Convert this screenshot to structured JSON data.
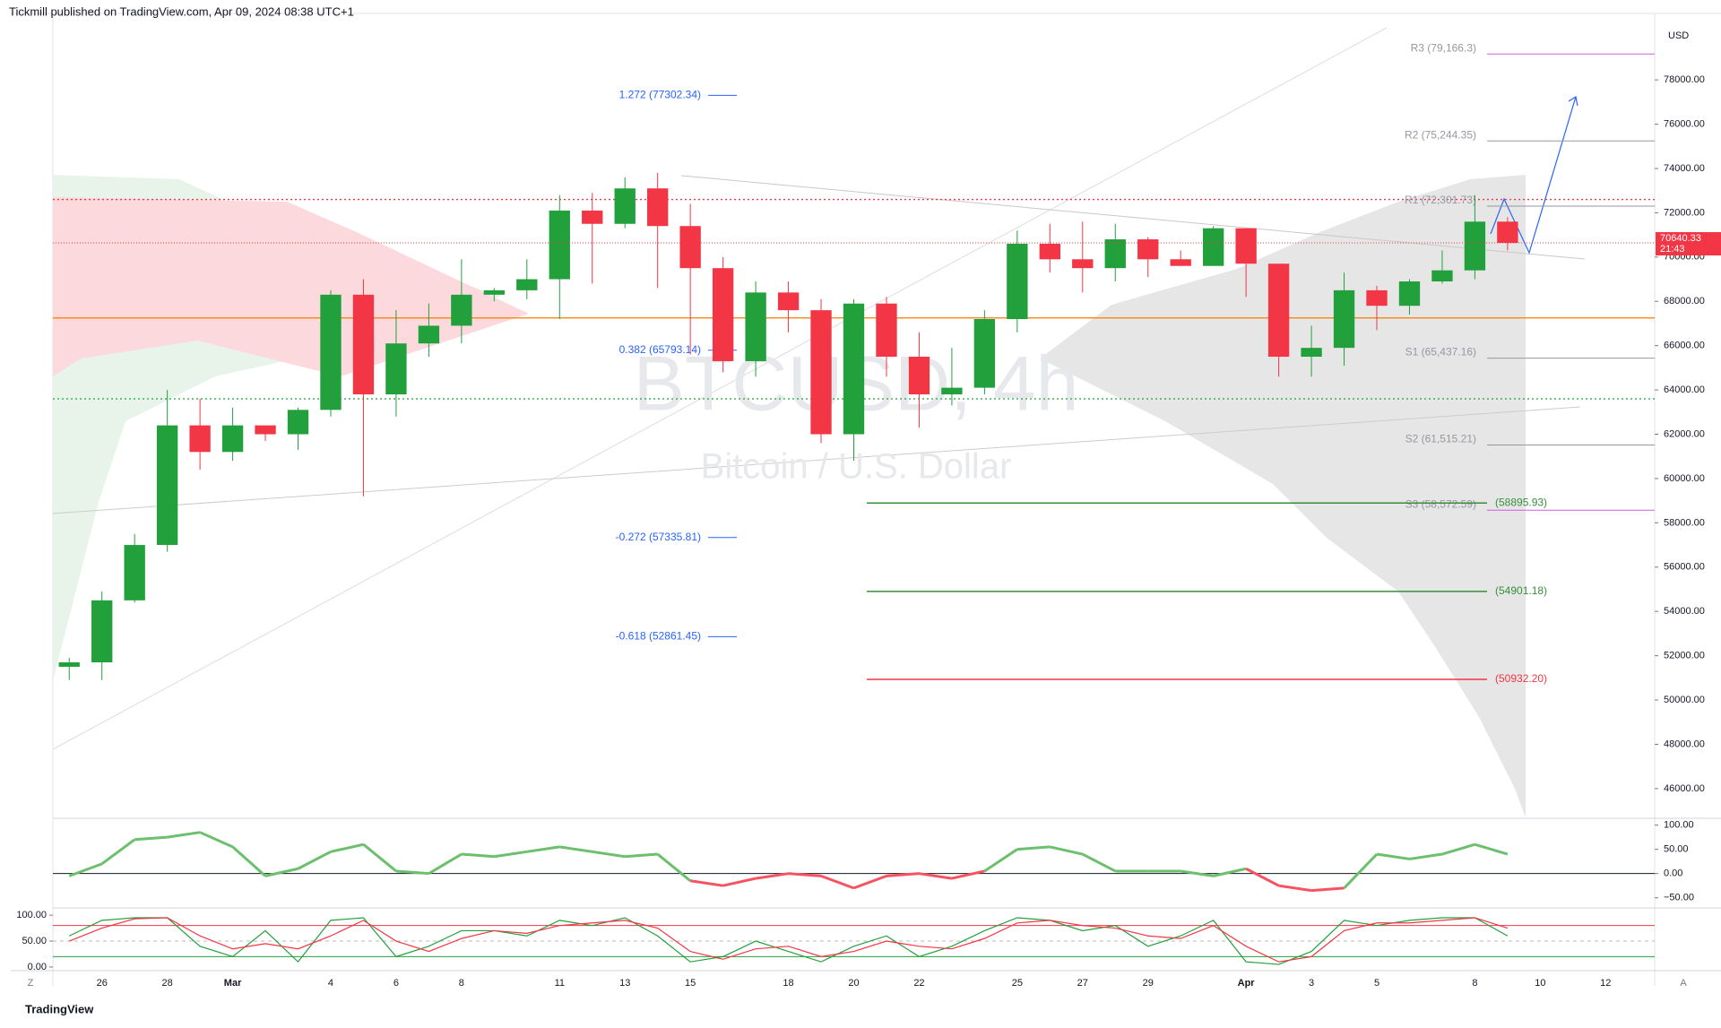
{
  "header": {
    "publisher": "Tickmill published on TradingView.com, Apr 09, 2024 08:38 UTC+1",
    "currency": "USD",
    "brand": "TradingView",
    "left_button": "Z",
    "right_button": "A"
  },
  "chart_data": {
    "type": "candlestick",
    "symbol": "BTCUSD, 4h",
    "description": "Bitcoin / U.S. Dollar",
    "up_color": "#22a03c",
    "down_color": "#f23645",
    "categories": [
      null,
      "26",
      null,
      "28",
      null,
      "Mar",
      null,
      null,
      "4",
      null,
      "6",
      null,
      "8",
      null,
      null,
      "11",
      null,
      "13",
      null,
      "15",
      null,
      null,
      "18",
      null,
      "20",
      null,
      "22",
      null,
      null,
      "25",
      null,
      "27",
      null,
      "29",
      null,
      null,
      "Apr",
      null,
      "3",
      null,
      "5",
      null,
      null,
      "8",
      null,
      "10",
      null,
      "12",
      null
    ],
    "open": [
      51500,
      51700,
      54500,
      57000,
      62400,
      61200,
      62400,
      62000,
      63100,
      68300,
      63800,
      66100,
      66900,
      68300,
      68500,
      69000,
      72100,
      71500,
      73100,
      71400,
      69500,
      65300,
      68400,
      67600,
      62000,
      67900,
      65500,
      63800,
      64100,
      67200,
      70600,
      69900,
      69500,
      70800,
      69900,
      69600,
      71300,
      69700,
      65500,
      65900,
      68500,
      67800,
      68900,
      69400,
      71600,
      null,
      null,
      null,
      null
    ],
    "high": [
      51900,
      54900,
      57500,
      64000,
      63600,
      63200,
      62400,
      63200,
      68500,
      69000,
      67600,
      67900,
      69900,
      68600,
      69900,
      72800,
      72900,
      73600,
      73800,
      72400,
      70000,
      68900,
      68900,
      68100,
      68100,
      68200,
      66600,
      65900,
      67600,
      71200,
      71500,
      71600,
      71500,
      70900,
      70300,
      71400,
      71300,
      69700,
      66900,
      69300,
      68700,
      69000,
      70300,
      72800,
      71800,
      null,
      null,
      null,
      null
    ],
    "low": [
      50900,
      50900,
      54400,
      56700,
      60400,
      60800,
      61700,
      61300,
      62800,
      59200,
      62800,
      65500,
      66100,
      68000,
      68100,
      67200,
      68800,
      71300,
      68600,
      65600,
      64800,
      64600,
      66600,
      61600,
      60800,
      64600,
      62300,
      63300,
      63800,
      66600,
      69300,
      68400,
      68900,
      69100,
      69600,
      69600,
      68200,
      64600,
      64600,
      65100,
      66700,
      67400,
      68800,
      69000,
      70300,
      null,
      null,
      null,
      null
    ],
    "close": [
      51700,
      54500,
      57000,
      62400,
      61200,
      62400,
      62000,
      63100,
      68300,
      63800,
      66100,
      66900,
      68300,
      68500,
      69000,
      72100,
      71500,
      73100,
      71400,
      69500,
      65300,
      68400,
      67600,
      62000,
      67900,
      65500,
      63800,
      64100,
      67200,
      70600,
      69900,
      69500,
      70800,
      69900,
      69600,
      71300,
      69700,
      65500,
      65900,
      68500,
      67800,
      68900,
      69400,
      71600,
      70640.33,
      null,
      null,
      null,
      null
    ],
    "ylim": [
      44700,
      81000
    ],
    "yticks": [
      {
        "value": 46000,
        "label": "46000.00"
      },
      {
        "value": 48000,
        "label": "48000.00"
      },
      {
        "value": 50000,
        "label": "50000.00"
      },
      {
        "value": 52000,
        "label": "52000.00"
      },
      {
        "value": 54000,
        "label": "54000.00"
      },
      {
        "value": 56000,
        "label": "56000.00"
      },
      {
        "value": 58000,
        "label": "58000.00"
      },
      {
        "value": 60000,
        "label": "60000.00"
      },
      {
        "value": 62000,
        "label": "62000.00"
      },
      {
        "value": 64000,
        "label": "64000.00"
      },
      {
        "value": 66000,
        "label": "66000.00"
      },
      {
        "value": 68000,
        "label": "68000.00"
      },
      {
        "value": 70000,
        "label": "70000.00"
      },
      {
        "value": 72000,
        "label": "72000.00"
      },
      {
        "value": 74000,
        "label": "74000.00"
      },
      {
        "value": 76000,
        "label": "76000.00"
      },
      {
        "value": 78000,
        "label": "78000.00"
      }
    ],
    "last_price": 70640.33,
    "countdown": "21:43",
    "levels": [
      {
        "value": 72600,
        "color": "#f23645",
        "dash": "2 3"
      },
      {
        "value": 67250,
        "color": "#f57c00",
        "dash": "none"
      },
      {
        "value": 63600,
        "color": "#22a03c",
        "dash": "2 3"
      }
    ],
    "fib_levels": [
      {
        "value": 77302.34,
        "label": "1.272 (77302.34)"
      },
      {
        "value": 65793.14,
        "label": "0.382 (65793.14)"
      },
      {
        "value": 57335.81,
        "label": "-0.272 (57335.81)"
      },
      {
        "value": 52861.45,
        "label": "-0.618 (52861.45)"
      }
    ],
    "pivots": [
      {
        "value": 79166.3,
        "label": "R3 (79,166.3)"
      },
      {
        "value": 75244.35,
        "label": "R2 (75,244.35)"
      },
      {
        "value": 72301.73,
        "label": "R1 (72,301.73)"
      },
      {
        "value": 65437.16,
        "label": "S1 (65,437.16)"
      },
      {
        "value": 61515.21,
        "label": "S2 (61,515.21)"
      },
      {
        "value": 58572.59,
        "label": "S3 (58,572.59)"
      }
    ],
    "targets": [
      {
        "value": 58895.93,
        "label": "(58895.93)",
        "color": "#388e3c"
      },
      {
        "value": 54901.18,
        "label": "(54901.18)",
        "color": "#388e3c"
      },
      {
        "value": 50932.2,
        "label": "(50932.20)",
        "color": "#f23645"
      }
    ],
    "oscillator": {
      "ylim": [
        -69,
        114
      ],
      "yticks": [
        {
          "value": 100,
          "label": "100.00"
        },
        {
          "value": 50,
          "label": "50.00"
        },
        {
          "value": 0,
          "label": "0.00"
        },
        {
          "value": -50,
          "label": "−50.00"
        }
      ],
      "above_color": "#6cbf6c",
      "below_color": "#f7525f",
      "values": [
        -5,
        20,
        70,
        75,
        85,
        55,
        -5,
        10,
        45,
        60,
        5,
        0,
        40,
        35,
        45,
        55,
        45,
        35,
        40,
        -15,
        -25,
        -10,
        0,
        -5,
        -30,
        -5,
        0,
        -10,
        5,
        50,
        55,
        40,
        5,
        5,
        5,
        -5,
        10,
        -25,
        -35,
        -30,
        40,
        30,
        40,
        60,
        40,
        null,
        null,
        null,
        null
      ]
    },
    "stochastic": {
      "ylim": [
        -7,
        114
      ],
      "yticks": [
        {
          "value": 100,
          "label": "100.00"
        },
        {
          "value": 50,
          "label": "50.00"
        },
        {
          "value": 0,
          "label": "0.00"
        }
      ],
      "bands": [
        {
          "value": 80,
          "color": "#f23645"
        },
        {
          "value": 50,
          "color": "#bbbbbb"
        },
        {
          "value": 20,
          "color": "#22a03c"
        }
      ],
      "series": [
        {
          "color": "#22a03c",
          "values": [
            60,
            90,
            95,
            95,
            40,
            20,
            70,
            10,
            90,
            95,
            20,
            40,
            70,
            70,
            60,
            90,
            80,
            95,
            60,
            10,
            20,
            50,
            30,
            10,
            40,
            60,
            20,
            40,
            70,
            95,
            90,
            70,
            80,
            40,
            60,
            90,
            10,
            5,
            30,
            90,
            80,
            90,
            95,
            95,
            60,
            null,
            null,
            null,
            null
          ]
        },
        {
          "color": "#f23645",
          "values": [
            50,
            75,
            93,
            95,
            60,
            35,
            45,
            35,
            60,
            90,
            50,
            30,
            55,
            70,
            65,
            80,
            85,
            90,
            75,
            30,
            15,
            35,
            40,
            20,
            30,
            50,
            40,
            35,
            55,
            85,
            90,
            80,
            75,
            60,
            55,
            80,
            40,
            10,
            20,
            70,
            85,
            85,
            90,
            95,
            75,
            null,
            null,
            null,
            null
          ]
        }
      ]
    }
  }
}
